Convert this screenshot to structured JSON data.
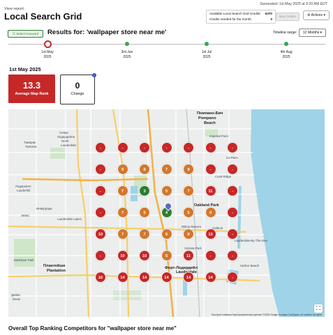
{
  "header": {
    "view_report": "View report:",
    "title": "Local Search Grid",
    "generated": "Generated: 1st May 2025 at 9:20 AM EDT",
    "credits": {
      "available_label": "Available Local Search Grid Credits:",
      "available_value": "6370",
      "needed_label": "Credits needed for the month:",
      "needed_value": "0",
      "buy_label": "Buy Credits"
    },
    "actions_label": "Actions ▾"
  },
  "toolbar": {
    "select_keyword_label": "Select Keyword",
    "results_title": "Results for: 'wallpaper store near me'",
    "timeline_label": "Timeline range:",
    "timeline_value": "12 Months ▾"
  },
  "timeline": [
    {
      "date": "1st May",
      "year": "2025",
      "active": true
    },
    {
      "date": "3rd Jun",
      "year": "2025",
      "active": false
    },
    {
      "date": "1st Jul",
      "year": "2025",
      "active": false
    },
    {
      "date": "4th Aug",
      "year": "2025",
      "active": false
    }
  ],
  "current": {
    "date_heading": "1st May 2025",
    "avg_rank_value": "13.3",
    "avg_rank_label": "Average Map Rank",
    "change_value": "0",
    "change_label": "Change"
  },
  "map": {
    "footer": "Быстрые клавиши   Картографические данные ©2025 Google   Условия   Сообщить об ошибке на карте",
    "places": [
      "Помпано-Бич",
      "Pompano",
      "Beach",
      "Север",
      "Лодердейла",
      "North",
      "Lauderdale",
      "Тамарак",
      "Tamarac",
      "Лодерхилл",
      "Lauderhill",
      "Инверрари",
      "Плантейшн",
      "Plantation",
      "Форт-Лодердейл",
      "Lauderdale",
      "Дейви",
      "Davie",
      "Си Ранч",
      "Лейкс",
      "Oakland Park",
      "Wilton Manors",
      "Victoria Park",
      "Imperial Point",
      "Lauderdale-By-The-Sea",
      "Coral Ridge",
      "Harbor Beach",
      "Galleria",
      "Markham Park",
      "Lauderdale Lakes"
    ],
    "grid": [
      [
        {
          "r": "-",
          "c": "r"
        },
        {
          "r": "-",
          "c": "r"
        },
        {
          "r": "-",
          "c": "r"
        },
        {
          "r": "-",
          "c": "r"
        },
        {
          "r": "-",
          "c": "r"
        },
        {
          "r": "-",
          "c": "r"
        },
        {
          "r": "-",
          "c": "r"
        }
      ],
      [
        {
          "r": "-",
          "c": "r"
        },
        {
          "r": "9",
          "c": "o"
        },
        {
          "r": "8",
          "c": "o"
        },
        {
          "r": "7",
          "c": "o"
        },
        {
          "r": "9",
          "c": "o"
        },
        {
          "r": "-",
          "c": "r"
        },
        {
          "r": "-",
          "c": "r"
        }
      ],
      [
        {
          "r": "-",
          "c": "r"
        },
        {
          "r": "7",
          "c": "o"
        },
        {
          "r": "3",
          "c": "g"
        },
        {
          "r": "5",
          "c": "o"
        },
        {
          "r": "7",
          "c": "o"
        },
        {
          "r": "11",
          "c": "r"
        },
        {
          "r": "-",
          "c": "r"
        }
      ],
      [
        {
          "r": "-",
          "c": "r"
        },
        {
          "r": "7",
          "c": "o"
        },
        {
          "r": "5",
          "c": "o"
        },
        {
          "r": "4",
          "c": "g"
        },
        {
          "r": "5",
          "c": "o"
        },
        {
          "r": "9",
          "c": "o"
        },
        {
          "r": "-",
          "c": "r"
        }
      ],
      [
        {
          "r": "10",
          "c": "r"
        },
        {
          "r": "7",
          "c": "o"
        },
        {
          "r": "7",
          "c": "o"
        },
        {
          "r": "6",
          "c": "o"
        },
        {
          "r": "8",
          "c": "o"
        },
        {
          "r": "13",
          "c": "r"
        },
        {
          "r": "-",
          "c": "r"
        }
      ],
      [
        {
          "r": "-",
          "c": "r"
        },
        {
          "r": "10",
          "c": "r"
        },
        {
          "r": "10",
          "c": "r"
        },
        {
          "r": "5",
          "c": "o"
        },
        {
          "r": "11",
          "c": "r"
        },
        {
          "r": "-",
          "c": "r"
        },
        {
          "r": "-",
          "c": "r"
        }
      ],
      [
        {
          "r": "16",
          "c": "r"
        },
        {
          "r": "14",
          "c": "r"
        },
        {
          "r": "14",
          "c": "r"
        },
        {
          "r": "14",
          "c": "r"
        },
        {
          "r": "14",
          "c": "r"
        },
        {
          "r": "14",
          "c": "r"
        },
        {
          "r": "-",
          "c": "r"
        }
      ]
    ]
  },
  "competitors_title": "Overall Top Ranking Competitors for \"wallpaper store near me\"",
  "colors": {
    "red": "#c62828",
    "orange": "#d2782e",
    "green": "#2e7d32",
    "water": "#9fd3e8"
  }
}
